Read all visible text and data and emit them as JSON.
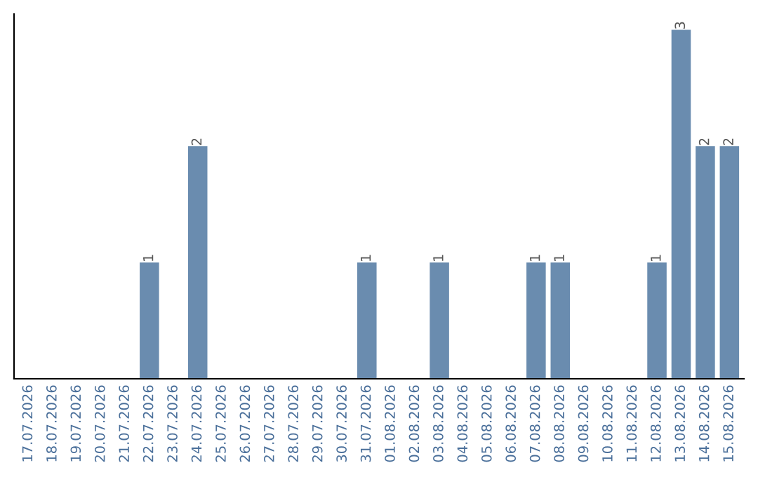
{
  "chart_data": {
    "type": "bar",
    "categories": [
      "17.07.2026",
      "18.07.2026",
      "19.07.2026",
      "20.07.2026",
      "21.07.2026",
      "22.07.2026",
      "23.07.2026",
      "24.07.2026",
      "25.07.2026",
      "26.07.2026",
      "27.07.2026",
      "28.07.2026",
      "29.07.2026",
      "30.07.2026",
      "31.07.2026",
      "01.08.2026",
      "02.08.2026",
      "03.08.2026",
      "04.08.2026",
      "05.08.2026",
      "06.08.2026",
      "07.08.2026",
      "08.08.2026",
      "09.08.2026",
      "10.08.2026",
      "11.08.2026",
      "12.08.2026",
      "13.08.2026",
      "14.08.2026",
      "15.08.2026"
    ],
    "values": [
      0,
      0,
      0,
      0,
      0,
      1,
      0,
      2,
      0,
      0,
      0,
      0,
      0,
      0,
      1,
      0,
      0,
      1,
      0,
      0,
      0,
      1,
      1,
      0,
      0,
      0,
      1,
      3,
      2,
      2
    ],
    "value_labels": [
      null,
      null,
      null,
      null,
      null,
      "1",
      null,
      "2",
      null,
      null,
      null,
      null,
      null,
      null,
      "1",
      null,
      null,
      "1",
      null,
      null,
      null,
      "1",
      "1",
      null,
      null,
      null,
      "1",
      "3",
      "2",
      "2"
    ],
    "color": "#6a8caf",
    "tick_labels": "x",
    "grid": false,
    "legend": false
  }
}
